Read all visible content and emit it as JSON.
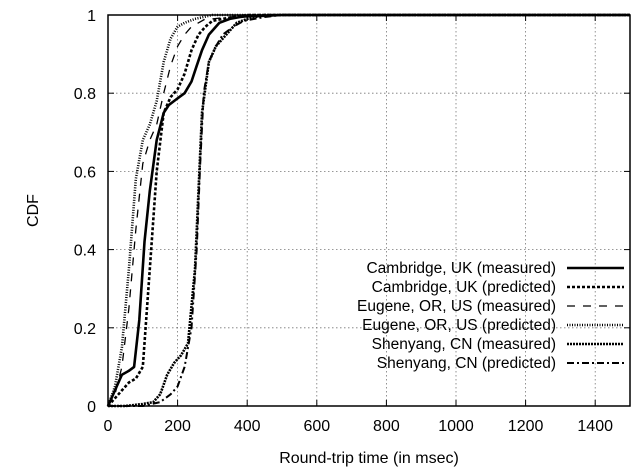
{
  "chart_data": {
    "type": "line",
    "title": "",
    "xlabel": "Round-trip time (in msec)",
    "ylabel": "CDF",
    "xlim": [
      0,
      1500
    ],
    "ylim": [
      0,
      1
    ],
    "xticks": [
      0,
      200,
      400,
      600,
      800,
      1000,
      1200,
      1400
    ],
    "yticks": [
      0,
      0.2,
      0.4,
      0.6,
      0.8,
      1
    ],
    "ytick_labels": [
      "0",
      "0.2",
      "0.4",
      "0.6",
      "0.8",
      "1"
    ],
    "grid": true,
    "legend_position": "bottom-right",
    "series": [
      {
        "name": "Cambridge, UK (measured)",
        "dash": "solid",
        "width": 2.6,
        "x": [
          0,
          10,
          25,
          40,
          60,
          75,
          90,
          105,
          120,
          140,
          160,
          175,
          190,
          205,
          220,
          240,
          255,
          270,
          290,
          320,
          350,
          380,
          400,
          450,
          500,
          700,
          1000,
          1500
        ],
        "y": [
          0,
          0.02,
          0.05,
          0.08,
          0.09,
          0.1,
          0.22,
          0.42,
          0.55,
          0.68,
          0.75,
          0.77,
          0.78,
          0.79,
          0.8,
          0.83,
          0.87,
          0.91,
          0.95,
          0.98,
          0.99,
          0.995,
          0.997,
          0.998,
          1.0,
          1.0,
          1.0,
          1.0
        ]
      },
      {
        "name": "Cambridge, UK (predicted)",
        "dash": "3,2",
        "width": 2.6,
        "x": [
          0,
          20,
          40,
          60,
          80,
          100,
          120,
          140,
          160,
          180,
          200,
          220,
          240,
          260,
          280,
          300,
          330,
          360,
          400,
          500,
          1500
        ],
        "y": [
          0,
          0.02,
          0.04,
          0.06,
          0.07,
          0.1,
          0.35,
          0.6,
          0.75,
          0.79,
          0.81,
          0.85,
          0.91,
          0.95,
          0.97,
          0.985,
          0.99,
          0.995,
          1.0,
          1.0,
          1.0
        ]
      },
      {
        "name": "Eugene, OR, US (measured)",
        "dash": "8,8",
        "width": 1.3,
        "x": [
          0,
          20,
          40,
          60,
          80,
          100,
          120,
          140,
          160,
          180,
          200,
          220,
          240,
          260,
          280,
          300,
          350,
          400,
          500,
          1500
        ],
        "y": [
          0,
          0.03,
          0.1,
          0.25,
          0.45,
          0.62,
          0.68,
          0.72,
          0.8,
          0.87,
          0.92,
          0.95,
          0.97,
          0.98,
          0.99,
          0.99,
          0.995,
          1.0,
          1.0,
          1.0
        ]
      },
      {
        "name": "Eugene, OR, US (predicted)",
        "dash": "1,1.5",
        "width": 2.6,
        "x": [
          0,
          20,
          40,
          60,
          80,
          100,
          120,
          140,
          160,
          180,
          200,
          220,
          250,
          300,
          400,
          1500
        ],
        "y": [
          0,
          0.05,
          0.15,
          0.35,
          0.58,
          0.68,
          0.72,
          0.78,
          0.88,
          0.94,
          0.97,
          0.98,
          0.99,
          1.0,
          1.0,
          1.0
        ]
      },
      {
        "name": "Shenyang, CN (measured)",
        "dash": "2,1",
        "width": 2.6,
        "x": [
          0,
          50,
          100,
          130,
          150,
          170,
          190,
          210,
          230,
          250,
          260,
          270,
          290,
          310,
          340,
          370,
          400,
          450,
          500,
          1500
        ],
        "y": [
          0,
          0.0,
          0.005,
          0.01,
          0.03,
          0.08,
          0.11,
          0.13,
          0.16,
          0.35,
          0.55,
          0.75,
          0.88,
          0.92,
          0.95,
          0.98,
          0.99,
          1.0,
          1.0,
          1.0
        ]
      },
      {
        "name": "Shenyang, CN (predicted)",
        "dash": "7,3,2,3",
        "width": 2.0,
        "x": [
          0,
          100,
          150,
          180,
          200,
          220,
          240,
          255,
          265,
          275,
          290,
          310,
          330,
          360,
          390,
          420,
          450,
          500,
          1500
        ],
        "y": [
          0,
          0.0,
          0.01,
          0.03,
          0.05,
          0.1,
          0.2,
          0.4,
          0.62,
          0.8,
          0.88,
          0.92,
          0.95,
          0.97,
          0.985,
          0.99,
          0.995,
          1.0,
          1.0
        ]
      }
    ]
  }
}
